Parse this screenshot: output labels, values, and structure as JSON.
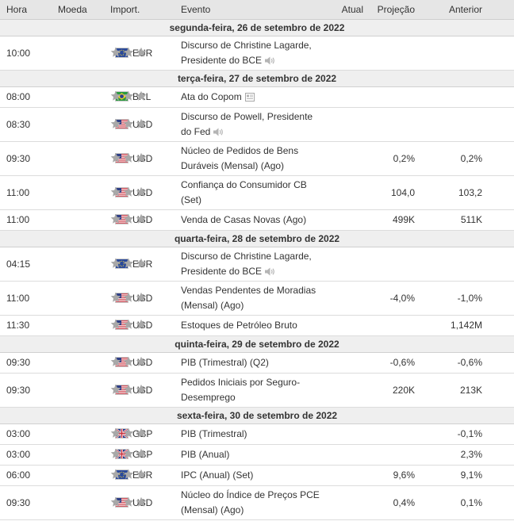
{
  "headers": {
    "hora": "Hora",
    "moeda": "Moeda",
    "importancia": "Import.",
    "evento": "Evento",
    "atual": "Atual",
    "projecao": "Projeção",
    "anterior": "Anterior"
  },
  "colors": {
    "header_bg": "#e6e6e6",
    "date_bg": "#efefef",
    "star_gray": "#a8a8a8",
    "text": "#333333"
  },
  "days": [
    {
      "date": "segunda-feira, 26 de setembro de 2022",
      "events": [
        {
          "time": "10:00",
          "currency": "EUR",
          "flag": "eu-flag",
          "stars_filled": 0,
          "title": "Discurso de Christine Lagarde, Presidente do BCE",
          "icon": "speaker-icon",
          "actual": "",
          "forecast": "",
          "previous": ""
        }
      ]
    },
    {
      "date": "terça-feira, 27 de setembro de 2022",
      "events": [
        {
          "time": "08:00",
          "currency": "BRL",
          "flag": "br-flag",
          "stars_filled": 0,
          "title": "Ata do Copom",
          "icon": "document-icon",
          "actual": "",
          "forecast": "",
          "previous": ""
        },
        {
          "time": "08:30",
          "currency": "USD",
          "flag": "us-flag",
          "stars_filled": 0,
          "title": "Discurso de Powell, Presidente do Fed",
          "icon": "speaker-icon",
          "actual": "",
          "forecast": "",
          "previous": ""
        },
        {
          "time": "09:30",
          "currency": "USD",
          "flag": "us-flag",
          "stars_filled": 0,
          "title": "Núcleo de Pedidos de Bens Duráveis (Mensal) (Ago)",
          "icon": "",
          "actual": "",
          "forecast": "0,2%",
          "previous": "0,2%"
        },
        {
          "time": "11:00",
          "currency": "USD",
          "flag": "us-flag",
          "stars_filled": 0,
          "title": "Confiança do Consumidor CB (Set)",
          "icon": "",
          "actual": "",
          "forecast": "104,0",
          "previous": "103,2"
        },
        {
          "time": "11:00",
          "currency": "USD",
          "flag": "us-flag",
          "stars_filled": 0,
          "title": "Venda de Casas Novas (Ago)",
          "icon": "",
          "actual": "",
          "forecast": "499K",
          "previous": "511K"
        }
      ]
    },
    {
      "date": "quarta-feira, 28 de setembro de 2022",
      "events": [
        {
          "time": "04:15",
          "currency": "EUR",
          "flag": "eu-flag",
          "stars_filled": 0,
          "title": "Discurso de Christine Lagarde, Presidente do BCE",
          "icon": "speaker-icon",
          "actual": "",
          "forecast": "",
          "previous": ""
        },
        {
          "time": "11:00",
          "currency": "USD",
          "flag": "us-flag",
          "stars_filled": 0,
          "title": "Vendas Pendentes de Moradias (Mensal) (Ago)",
          "icon": "",
          "actual": "",
          "forecast": "-4,0%",
          "previous": "-1,0%"
        },
        {
          "time": "11:30",
          "currency": "USD",
          "flag": "us-flag",
          "stars_filled": 0,
          "title": "Estoques de Petróleo Bruto",
          "icon": "",
          "actual": "",
          "forecast": "",
          "previous": "1,142M"
        }
      ]
    },
    {
      "date": "quinta-feira, 29 de setembro de 2022",
      "events": [
        {
          "time": "09:30",
          "currency": "USD",
          "flag": "us-flag",
          "stars_filled": 0,
          "title": "PIB (Trimestral) (Q2)",
          "icon": "",
          "actual": "",
          "forecast": "-0,6%",
          "previous": "-0,6%"
        },
        {
          "time": "09:30",
          "currency": "USD",
          "flag": "us-flag",
          "stars_filled": 0,
          "title": "Pedidos Iniciais por Seguro-Desemprego",
          "icon": "",
          "actual": "",
          "forecast": "220K",
          "previous": "213K"
        }
      ]
    },
    {
      "date": "sexta-feira, 30 de setembro de 2022",
      "events": [
        {
          "time": "03:00",
          "currency": "GBP",
          "flag": "gb-flag",
          "stars_filled": 0,
          "title": "PIB (Trimestral)",
          "icon": "",
          "actual": "",
          "forecast": "",
          "previous": "-0,1%"
        },
        {
          "time": "03:00",
          "currency": "GBP",
          "flag": "gb-flag",
          "stars_filled": 0,
          "title": "PIB (Anual)",
          "icon": "",
          "actual": "",
          "forecast": "",
          "previous": "2,3%"
        },
        {
          "time": "06:00",
          "currency": "EUR",
          "flag": "eu-flag",
          "stars_filled": 0,
          "title": "IPC (Anual) (Set)",
          "icon": "",
          "actual": "",
          "forecast": "9,6%",
          "previous": "9,1%"
        },
        {
          "time": "09:30",
          "currency": "USD",
          "flag": "us-flag",
          "stars_filled": 0,
          "title": "Núcleo do Índice de Preços PCE (Mensal) (Ago)",
          "icon": "",
          "actual": "",
          "forecast": "0,4%",
          "previous": "0,1%"
        }
      ]
    }
  ]
}
